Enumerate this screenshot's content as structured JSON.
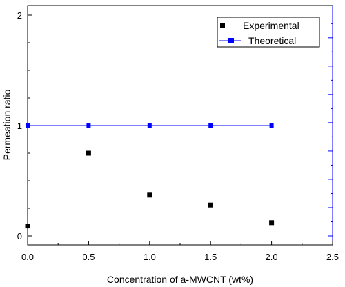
{
  "chart_data": {
    "type": "scatter",
    "xlabel": "Concentration of a-MWCNT (wt%)",
    "ylabel": "Permeation ratio",
    "xlim": [
      0.0,
      2.5
    ],
    "ylim": [
      0,
      2
    ],
    "x_ticks": [
      "0.0",
      "0.5",
      "1.0",
      "1.5",
      "2.0",
      "2.5"
    ],
    "y_ticks": [
      "0",
      "1",
      "2"
    ],
    "grid": false,
    "legend_position": "top-right",
    "series": [
      {
        "name": "Experimental",
        "style": "markers",
        "color": "#000000",
        "x": [
          0.0,
          0.5,
          1.0,
          1.5,
          2.0
        ],
        "y": [
          0.09,
          0.75,
          0.37,
          0.28,
          0.12
        ]
      },
      {
        "name": "Theoretical",
        "style": "line+markers",
        "color": "#0000ff",
        "x": [
          0.0,
          0.5,
          1.0,
          1.5,
          2.0
        ],
        "y": [
          1.0,
          1.0,
          1.0,
          1.0,
          1.0
        ]
      }
    ]
  }
}
